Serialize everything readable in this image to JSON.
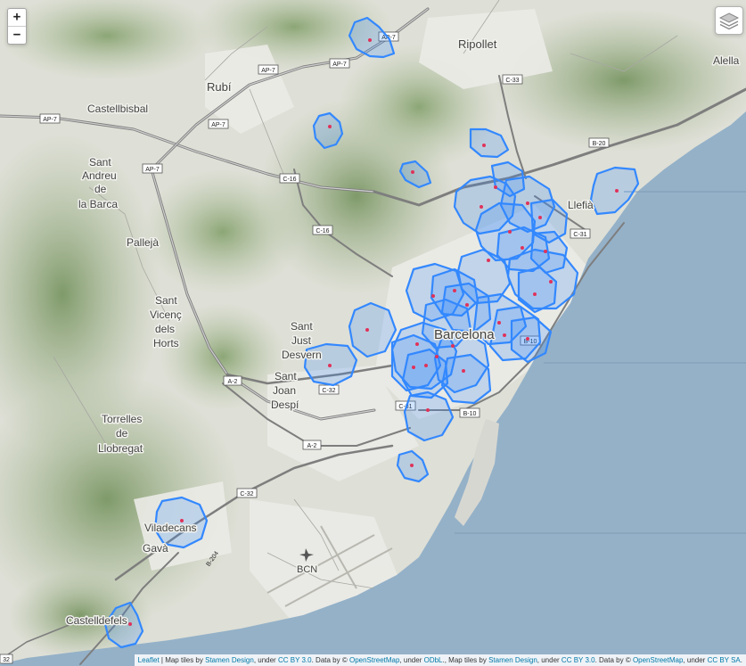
{
  "zoom": {
    "in_label": "+",
    "out_label": "−"
  },
  "places": {
    "ripollet": "Ripollet",
    "alella": "Alella",
    "rubi": "Rubí",
    "castellbisbal": "Castellbisbal",
    "sant_andreu_1": "Sant",
    "sant_andreu_2": "Andreu",
    "sant_andreu_3": "de",
    "sant_andreu_4": "la Barca",
    "palleja": "Pallejà",
    "sant_vicenc_1": "Sant",
    "sant_vicenc_2": "Vicenç",
    "sant_vicenc_3": "dels",
    "sant_vicenc_4": "Horts",
    "sant_just_1": "Sant",
    "sant_just_2": "Just",
    "sant_just_3": "Desvern",
    "sant_joan_1": "Sant",
    "sant_joan_2": "Joan",
    "sant_joan_3": "Despí",
    "torrelles_1": "Torrelles",
    "torrelles_2": "de",
    "torrelles_3": "Llobregat",
    "barcelona": "Barcelona",
    "llefia": "Llefià",
    "viladecans": "Viladecans",
    "gava": "Gavà",
    "castelldefels": "Castelldefels",
    "bcn": "BCN"
  },
  "roads": {
    "ap7_a": "AP-7",
    "ap7_b": "AP-7",
    "ap7_c": "AP-7",
    "ap7_d": "AP-7",
    "ap7_e": "AP-7",
    "ap7_f": "AP-7",
    "c33": "C-33",
    "b20": "B-20",
    "c16_a": "C-16",
    "c16_b": "C-16",
    "c31": "C-31",
    "b10_a": "B-10",
    "b10_b": "B-10",
    "c32_a": "C-32",
    "c32_b": "C-32",
    "c31_b": "C-31",
    "a2_a": "A-2",
    "a2_b": "A-2",
    "b204": "B-204",
    "c32_edge": "32"
  },
  "colors": {
    "sea": "#94b1c8",
    "polygon_stroke": "#3388ff",
    "polygon_fill": "#3388ff",
    "point": "#e0325a"
  },
  "attribution": {
    "leaflet": "Leaflet",
    "t1": " | Map tiles by ",
    "stamen1": "Stamen Design",
    "t2": ", under ",
    "ccby1": "CC BY 3.0",
    "t3": ". Data by © ",
    "osm1": "OpenStreetMap",
    "t4": ", under ",
    "odbl": "ODbL",
    "t5": "., Map tiles by ",
    "stamen2": "Stamen Design",
    "t6": ", under ",
    "ccby2": "CC BY 3.0",
    "t7": ". Data by © ",
    "osm2": "OpenStreetMap",
    "t8": ", under ",
    "ccby3": "CC BY SA",
    "t9": "."
  }
}
